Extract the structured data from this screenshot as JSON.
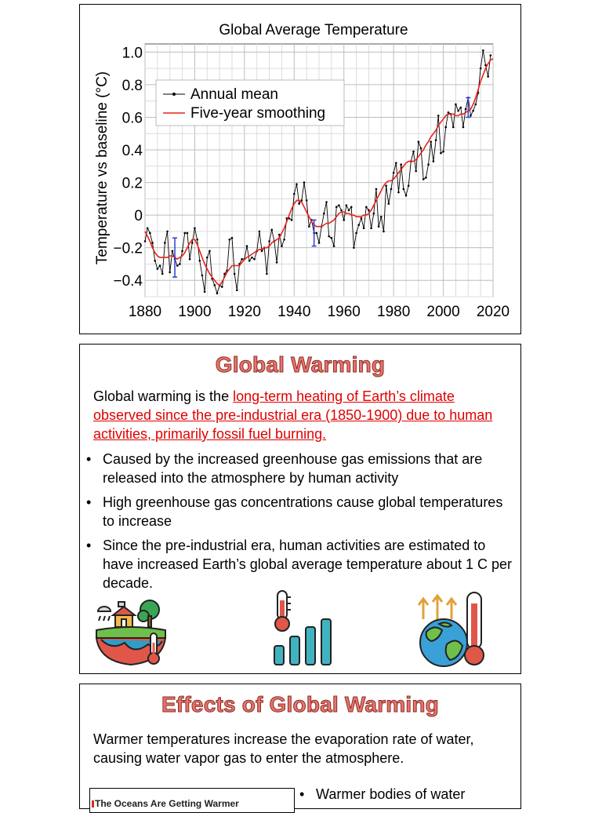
{
  "chart_data": {
    "type": "line",
    "title": "Global Average Temperature",
    "ylabel": "Temperature vs baseline (°C)",
    "xlabel": "",
    "xlim": [
      1880,
      2020
    ],
    "ylim": [
      -0.5,
      1.05
    ],
    "x_ticks": [
      "1880",
      "1900",
      "1920",
      "1940",
      "1960",
      "1980",
      "2000",
      "2020"
    ],
    "y_ticks": [
      {
        "v": 1.0,
        "label": "1.0"
      },
      {
        "v": 0.8,
        "label": "0.8"
      },
      {
        "v": 0.6,
        "label": "0.6"
      },
      {
        "v": 0.4,
        "label": "0.4"
      },
      {
        "v": 0.2,
        "label": "0.2"
      },
      {
        "v": 0.0,
        "label": "0"
      },
      {
        "v": -0.2,
        "label": "−0.2"
      },
      {
        "v": -0.4,
        "label": "−0.4"
      }
    ],
    "grid": true,
    "legend_position": "top-left",
    "series": [
      {
        "name": "Annual mean",
        "color": "#000000",
        "start_year": 1880,
        "values": [
          -0.16,
          -0.08,
          -0.11,
          -0.17,
          -0.28,
          -0.33,
          -0.31,
          -0.36,
          -0.17,
          -0.1,
          -0.35,
          -0.22,
          -0.27,
          -0.31,
          -0.3,
          -0.22,
          -0.11,
          -0.11,
          -0.27,
          -0.17,
          -0.08,
          -0.15,
          -0.28,
          -0.37,
          -0.47,
          -0.26,
          -0.22,
          -0.39,
          -0.43,
          -0.48,
          -0.43,
          -0.44,
          -0.36,
          -0.34,
          -0.15,
          -0.14,
          -0.36,
          -0.46,
          -0.3,
          -0.27,
          -0.27,
          -0.19,
          -0.28,
          -0.26,
          -0.27,
          -0.22,
          -0.1,
          -0.22,
          -0.2,
          -0.36,
          -0.16,
          -0.09,
          -0.16,
          -0.29,
          -0.12,
          -0.19,
          -0.15,
          -0.02,
          -0.02,
          -0.03,
          0.13,
          0.19,
          0.07,
          0.09,
          0.2,
          0.09,
          -0.07,
          -0.03,
          -0.11,
          -0.11,
          -0.17,
          -0.07,
          0.01,
          0.08,
          -0.13,
          -0.14,
          -0.19,
          0.05,
          0.06,
          0.03,
          -0.03,
          0.06,
          0.03,
          0.05,
          -0.2,
          -0.11,
          -0.06,
          -0.02,
          -0.08,
          0.05,
          0.03,
          -0.08,
          0.01,
          0.16,
          -0.07,
          -0.01,
          -0.1,
          0.18,
          0.07,
          0.16,
          0.26,
          0.32,
          0.14,
          0.31,
          0.16,
          0.12,
          0.18,
          0.33,
          0.39,
          0.27,
          0.45,
          0.41,
          0.22,
          0.23,
          0.31,
          0.45,
          0.33,
          0.46,
          0.61,
          0.38,
          0.39,
          0.54,
          0.63,
          0.62,
          0.54,
          0.68,
          0.64,
          0.66,
          0.54,
          0.65,
          0.72,
          0.61,
          0.64,
          0.68,
          0.75,
          0.9,
          1.01,
          0.92,
          0.85,
          0.98
        ]
      },
      {
        "name": "Five-year smoothing",
        "color": "#e8221c",
        "start_year": 1880,
        "values": [
          -0.1,
          -0.13,
          -0.16,
          -0.2,
          -0.23,
          -0.25,
          -0.26,
          -0.26,
          -0.26,
          -0.26,
          -0.25,
          -0.25,
          -0.26,
          -0.27,
          -0.26,
          -0.25,
          -0.23,
          -0.2,
          -0.17,
          -0.15,
          -0.15,
          -0.18,
          -0.22,
          -0.26,
          -0.3,
          -0.33,
          -0.36,
          -0.38,
          -0.4,
          -0.42,
          -0.43,
          -0.41,
          -0.38,
          -0.35,
          -0.33,
          -0.31,
          -0.31,
          -0.31,
          -0.31,
          -0.29,
          -0.27,
          -0.26,
          -0.25,
          -0.24,
          -0.23,
          -0.22,
          -0.21,
          -0.21,
          -0.2,
          -0.2,
          -0.19,
          -0.17,
          -0.16,
          -0.15,
          -0.14,
          -0.11,
          -0.08,
          -0.04,
          0.0,
          0.04,
          0.07,
          0.09,
          0.09,
          0.08,
          0.05,
          0.02,
          -0.01,
          -0.04,
          -0.06,
          -0.07,
          -0.07,
          -0.07,
          -0.06,
          -0.05,
          -0.05,
          -0.04,
          -0.03,
          -0.01,
          0.01,
          0.02,
          0.02,
          0.01,
          0.01,
          0.0,
          0.0,
          -0.01,
          -0.01,
          -0.01,
          0.0,
          0.0,
          0.01,
          0.03,
          0.06,
          0.09,
          0.12,
          0.15,
          0.18,
          0.2,
          0.21,
          0.21,
          0.22,
          0.24,
          0.26,
          0.28,
          0.3,
          0.32,
          0.33,
          0.33,
          0.33,
          0.34,
          0.36,
          0.38,
          0.4,
          0.43,
          0.45,
          0.48,
          0.5,
          0.52,
          0.55,
          0.57,
          0.59,
          0.61,
          0.62,
          0.62,
          0.62,
          0.61,
          0.61,
          0.62,
          0.62,
          0.63,
          0.64,
          0.65,
          0.68,
          0.72,
          0.77,
          0.82,
          0.86,
          0.9,
          0.93,
          0.95,
          0.96
        ]
      }
    ],
    "error_bars": [
      {
        "x": 1892,
        "low": -0.38,
        "high": -0.14
      },
      {
        "x": 1948,
        "low": -0.19,
        "high": -0.03
      },
      {
        "x": 2010,
        "low": 0.6,
        "high": 0.72
      }
    ],
    "error_bar_color": "#2e3ccf"
  },
  "slide2": {
    "title": "Global Warming",
    "intro_plain": "Global warming is the ",
    "intro_highlight": "long-term heating of Earth’s climate observed since the pre-industrial era (1850-1900) due to human activities, primarily fossil fuel burning.",
    "bullets": [
      "Caused by the increased greenhouse gas emissions that are released into the atmosphere by human activity",
      "High greenhouse gas concentrations cause global temperatures to increase",
      "Since the pre-industrial era, human activities are estimated to have increased Earth’s global average temperature about 1 C  per decade."
    ],
    "icons": [
      "climate-landscape-icon",
      "thermometer-bar-chart-icon",
      "globe-thermometer-icon"
    ]
  },
  "slide3": {
    "title": "Effects of Global Warming",
    "intro": "Warmer temperatures increase the evaporation rate of water, causing water vapor gas to enter the atmosphere.",
    "thumbnail_title": "The Oceans Are Getting Warmer",
    "bullets": [
      "Warmer bodies of water"
    ]
  }
}
